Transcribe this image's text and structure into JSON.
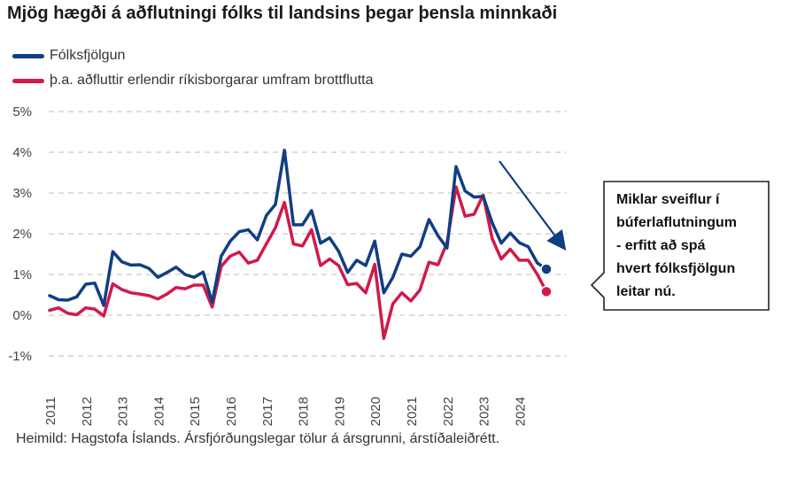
{
  "chart_data": {
    "type": "line",
    "title": "Mjög hægði á aðflutningi fólks til landsins þegar þensla minnkaði",
    "ylim": [
      -1,
      5
    ],
    "yticks": [
      -1,
      0,
      1,
      2,
      3,
      4,
      5
    ],
    "ytick_labels": [
      "-1%",
      "0%",
      "1%",
      "2%",
      "3%",
      "4%",
      "5%"
    ],
    "xlim": [
      2011,
      2025
    ],
    "xtick_labels": [
      "2011",
      "2012",
      "2013",
      "2014",
      "2015",
      "2016",
      "2017",
      "2018",
      "2019",
      "2020",
      "2021",
      "2022",
      "2023",
      "2024"
    ],
    "grid": true,
    "legend_position": "top-left",
    "series": [
      {
        "name": "Fólksfjölgun",
        "color": "#103e82",
        "start": 2011,
        "values": [
          0.48,
          0.38,
          0.37,
          0.45,
          0.76,
          0.79,
          0.24,
          1.56,
          1.31,
          1.23,
          1.24,
          1.15,
          0.93,
          1.05,
          1.18,
          1.0,
          0.93,
          1.06,
          0.32,
          1.45,
          1.82,
          2.05,
          2.1,
          1.85,
          2.45,
          2.72,
          4.05,
          2.22,
          2.22,
          2.57,
          1.77,
          1.9,
          1.57,
          1.05,
          1.35,
          1.22,
          1.82,
          0.55,
          0.93,
          1.5,
          1.45,
          1.68,
          2.35,
          1.95,
          1.65,
          3.65,
          3.05,
          2.9,
          2.92,
          2.27,
          1.77,
          2.02,
          1.78,
          1.68,
          1.28,
          1.13
        ]
      },
      {
        "name": "þ.a. aðfluttir erlendir ríkisborgarar umfram brottflutta",
        "color": "#d01a4a",
        "start": 2011,
        "values": [
          0.12,
          0.18,
          0.05,
          0.01,
          0.18,
          0.15,
          -0.02,
          0.77,
          0.63,
          0.55,
          0.52,
          0.48,
          0.4,
          0.52,
          0.68,
          0.65,
          0.74,
          0.74,
          0.2,
          1.2,
          1.45,
          1.55,
          1.28,
          1.35,
          1.75,
          2.15,
          2.77,
          1.75,
          1.7,
          2.1,
          1.22,
          1.38,
          1.22,
          0.75,
          0.78,
          0.55,
          1.25,
          -0.57,
          0.28,
          0.55,
          0.35,
          0.62,
          1.3,
          1.24,
          1.78,
          3.15,
          2.43,
          2.48,
          2.95,
          1.88,
          1.38,
          1.62,
          1.35,
          1.35,
          1.0,
          0.58
        ]
      }
    ],
    "annotations": {
      "callout_lines": [
        "Miklar sveiflur í",
        "búferlaflutningum",
        "- erfitt að spá",
        "hvert fólksfjölgun",
        "leitar nú."
      ],
      "arrow": "downward trend arrow toward latest values"
    },
    "source": "Heimild: Hagstofa Íslands. Ársfjórðungslegar tölur á ársgrunni, árstíðaleiðrétt."
  }
}
